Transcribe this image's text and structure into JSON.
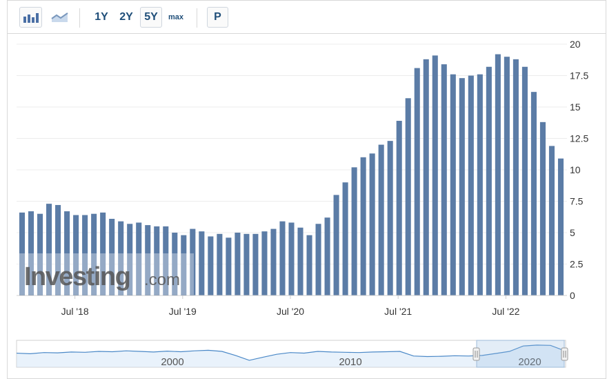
{
  "toolbar": {
    "bar_chart_icon": "bar-chart-icon",
    "line_chart_icon": "line-chart-icon",
    "range_1y": "1Y",
    "range_2y": "2Y",
    "range_5y": "5Y",
    "range_max": "max",
    "p_button": "P",
    "active_range": "5Y"
  },
  "watermark": {
    "brand": "Investing",
    "suffix": ".com"
  },
  "colors": {
    "bar": "#5b7ca6",
    "navigator_fill": "#cfe3f7",
    "navigator_line": "#4a88c7",
    "grid": "#ececec"
  },
  "chart_data": {
    "type": "bar",
    "x_tick_labels": [
      "Jul '18",
      "Jul '19",
      "Jul '20",
      "Jul '21",
      "Jul '22"
    ],
    "y_tick_labels": [
      "0",
      "2.5",
      "5",
      "7.5",
      "10",
      "12.5",
      "15",
      "17.5",
      "20"
    ],
    "ylim": [
      0,
      20
    ],
    "grid": true,
    "values": [
      6.6,
      6.7,
      6.5,
      7.3,
      7.2,
      6.7,
      6.4,
      6.4,
      6.5,
      6.6,
      6.1,
      5.9,
      5.7,
      5.8,
      5.6,
      5.5,
      5.5,
      5.0,
      4.8,
      5.3,
      5.1,
      4.7,
      4.9,
      4.6,
      5.0,
      4.9,
      4.9,
      5.1,
      5.3,
      5.9,
      5.8,
      5.4,
      4.8,
      5.7,
      6.2,
      8.0,
      9.0,
      10.2,
      11.0,
      11.3,
      12.0,
      12.3,
      13.9,
      15.7,
      18.1,
      18.8,
      19.1,
      18.4,
      17.6,
      17.3,
      17.5,
      17.6,
      18.2,
      19.2,
      19.0,
      18.8,
      18.2,
      16.2,
      13.8,
      11.9,
      10.9
    ],
    "navigator": {
      "labels": [
        "2000",
        "2010",
        "2020"
      ],
      "series": [
        3.0,
        2.8,
        3.2,
        3.1,
        3.4,
        3.3,
        3.6,
        3.5,
        3.8,
        3.6,
        3.4,
        3.7,
        3.5,
        3.8,
        4.0,
        3.6,
        2.2,
        0.5,
        1.6,
        2.6,
        3.2,
        3.0,
        3.6,
        3.4,
        3.3,
        3.2,
        3.4,
        3.5,
        3.6,
        2.0,
        1.8,
        1.9,
        2.1,
        2.0,
        2.2,
        2.9,
        3.6,
        5.5,
        5.8,
        5.7,
        3.9
      ]
    }
  }
}
